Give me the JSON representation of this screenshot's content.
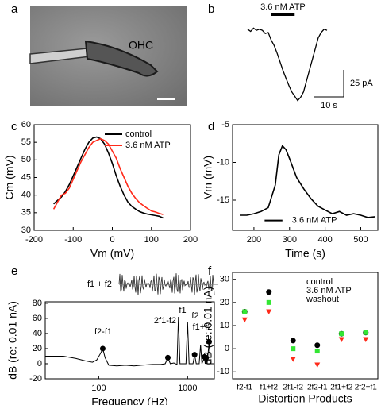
{
  "chart_data": [
    {
      "type": "image",
      "panel": "a",
      "annotation": "OHC"
    },
    {
      "type": "trace",
      "panel": "b",
      "annotation": "3.6 nM ATP",
      "annotation_range": [
        8,
        16
      ],
      "x": [
        0,
        1,
        2,
        3,
        4,
        5,
        6,
        7,
        8,
        9,
        10,
        11,
        12,
        13,
        14,
        15,
        16,
        17,
        18,
        19,
        20,
        21,
        22,
        23,
        24,
        25,
        26,
        27
      ],
      "series": [
        {
          "color": "#000000",
          "values": [
            0,
            -2,
            1,
            -1,
            0,
            -1,
            -4,
            -3,
            -10,
            -15,
            -22,
            -30,
            -38,
            -45,
            -52,
            -58,
            -62,
            -66,
            -63,
            -58,
            -48,
            -38,
            -28,
            -18,
            -8,
            -3,
            0,
            -1
          ]
        }
      ],
      "xlim": [
        0,
        27
      ],
      "ylim": [
        -70,
        5
      ],
      "scale_bars": [
        {
          "value": 25,
          "label": "25 pA"
        },
        {
          "value": 10,
          "label": "10 s"
        }
      ]
    },
    {
      "type": "line",
      "panel": "c",
      "xlabel": "Vm (mV)",
      "ylabel": "Cm (mV)",
      "x": [
        -150,
        -140,
        -130,
        -120,
        -110,
        -100,
        -90,
        -80,
        -70,
        -60,
        -50,
        -40,
        -30,
        -20,
        -10,
        0,
        10,
        20,
        30,
        40,
        50,
        60,
        70,
        80,
        90,
        100,
        110,
        120,
        130
      ],
      "series": [
        {
          "name": "control",
          "color": "#000000",
          "values": [
            37.5,
            38.5,
            39.5,
            41,
            43,
            45.5,
            48,
            50.5,
            53,
            55,
            56.2,
            56.5,
            56,
            54.5,
            52,
            49,
            45.5,
            42.5,
            40,
            38,
            36.8,
            36,
            35.3,
            34.9,
            34.6,
            34.4,
            34.2,
            34,
            33.5
          ]
        },
        {
          "name": "3.6 nM ATP",
          "color": "#ff2a1a",
          "values": [
            36,
            38,
            40,
            40.5,
            42,
            44.5,
            47,
            49.5,
            51.5,
            53.5,
            55,
            55.5,
            56,
            55.5,
            54.5,
            52.5,
            50.5,
            47.5,
            45,
            42.5,
            40.5,
            39,
            37.8,
            37,
            36.2,
            35.5,
            35.2,
            34.8,
            34.5
          ]
        }
      ],
      "xlim": [
        -200,
        200
      ],
      "xticks": [
        -200,
        -100,
        0,
        100,
        200
      ],
      "ylim": [
        30,
        60
      ],
      "yticks": [
        30,
        35,
        40,
        45,
        50,
        55,
        60
      ],
      "legend": "upper right"
    },
    {
      "type": "line",
      "panel": "d",
      "xlabel": "Time (s)",
      "ylabel": "Vm (mV)",
      "annotation": "3.6 nM ATP",
      "annotation_range": [
        230,
        280
      ],
      "annotation_y": -17.7,
      "x": [
        160,
        180,
        200,
        220,
        240,
        260,
        270,
        280,
        290,
        300,
        320,
        340,
        360,
        380,
        400,
        420,
        440,
        460,
        480,
        500,
        520,
        540
      ],
      "series": [
        {
          "color": "#000000",
          "values": [
            -17,
            -17,
            -16.8,
            -16.5,
            -16,
            -13,
            -9,
            -7.8,
            -8.3,
            -9.5,
            -12,
            -13.5,
            -14.8,
            -15.8,
            -16.3,
            -16.8,
            -16.5,
            -17,
            -16.8,
            -17,
            -17.3,
            -17.2
          ]
        }
      ],
      "xlim": [
        140,
        548
      ],
      "xticks": [
        200,
        300,
        400,
        500
      ],
      "ylim": [
        -19,
        -5
      ],
      "yticks": [
        -5,
        -10,
        -15
      ]
    },
    {
      "type": "line",
      "panel": "e",
      "xlabel": "Frequency (Hz)",
      "ylabel": "dB (re: 0.01 nA)",
      "log_x": true,
      "inset_label": "f1 + f2",
      "annotations": [
        "f2-f1",
        "2f1-f2",
        "f1",
        "f2",
        "f1+f2"
      ],
      "x": [
        25,
        40,
        55,
        70,
        85,
        95,
        105,
        111,
        118,
        130,
        160,
        200,
        250,
        300,
        400,
        500,
        560,
        600,
        640,
        700,
        760,
        790,
        820,
        900,
        960,
        1000,
        1040,
        1150,
        1200,
        1250,
        1350,
        1400,
        1450,
        1550,
        1580,
        1620,
        1660,
        1750,
        1800,
        1900,
        2000
      ],
      "series": [
        {
          "color": "#000000",
          "values": [
            10,
            10,
            7,
            4,
            2,
            5,
            14,
            20,
            8,
            -2,
            -3,
            -2,
            -3,
            -2,
            -1,
            -1,
            0,
            8,
            0,
            1,
            -1,
            62,
            0,
            0,
            0,
            55,
            0,
            0,
            12,
            0,
            0,
            25,
            0,
            9,
            0,
            8,
            0,
            29,
            0,
            0,
            0
          ]
        }
      ],
      "peaks": {
        "x": [
          111,
          600,
          1200,
          1750,
          1550,
          1620
        ],
        "values": [
          20,
          8,
          12,
          29,
          9,
          8
        ]
      },
      "xlim": [
        25,
        2000
      ],
      "xticks": [
        100,
        1000
      ],
      "ylim": [
        -20,
        82
      ],
      "yticks": [
        -20,
        0,
        20,
        40,
        60,
        80
      ]
    },
    {
      "type": "scatter",
      "panel": "f",
      "xlabel": "Distortion Products",
      "ylabel": "dB (re: 0.01 nA)",
      "categories": [
        "f2-f1",
        "f1+f2",
        "2f1-f2",
        "2f2-f1",
        "2f1+f2",
        "2f2+f1"
      ],
      "series": [
        {
          "name": "control",
          "color": "#000000",
          "marker": "circle",
          "values": [
            16,
            24.5,
            3.5,
            1.5,
            6.5,
            7
          ]
        },
        {
          "name": "3.6 nM ATP",
          "color": "#ff2a1a",
          "marker": "triangle",
          "values": [
            12.5,
            16,
            -4.5,
            -7,
            4,
            4
          ]
        },
        {
          "name": "washout",
          "color": "#33e633",
          "marker": "square",
          "values": [
            16,
            20,
            0,
            -1,
            6.5,
            7
          ]
        }
      ],
      "ylim": [
        -13,
        33
      ],
      "yticks": [
        -10,
        0,
        10,
        20,
        30
      ],
      "legend": "upper right"
    }
  ]
}
